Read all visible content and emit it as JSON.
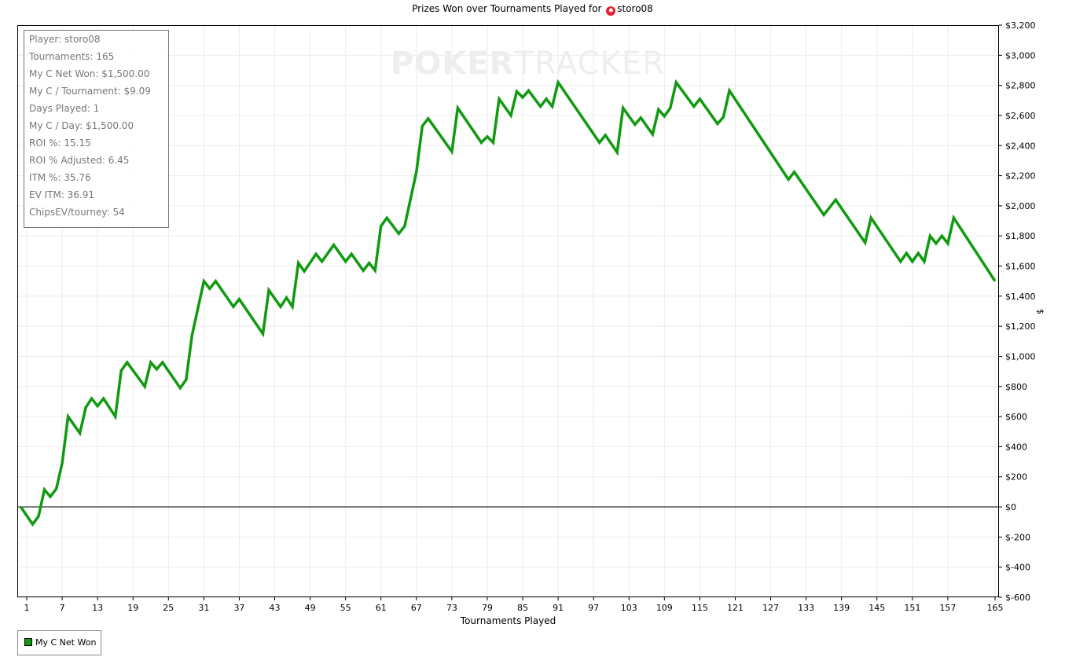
{
  "chart_data": {
    "type": "line",
    "title": "Prizes Won over Tournaments Played for",
    "title_player": "storo08",
    "title_icon": "red-spade-icon",
    "xlabel": "Tournaments Played",
    "ylabel": "$",
    "xlim": [
      0,
      165
    ],
    "ylim": [
      -600,
      3200
    ],
    "grid": true,
    "legend_position": "bottom-left",
    "x_ticks": [
      "1",
      "7",
      "13",
      "19",
      "25",
      "31",
      "37",
      "43",
      "49",
      "55",
      "61",
      "67",
      "73",
      "79",
      "85",
      "91",
      "97",
      "103",
      "109",
      "115",
      "121",
      "127",
      "133",
      "139",
      "145",
      "151",
      "157",
      "165"
    ],
    "y_ticks": [
      "$3,200",
      "$3,000",
      "$2,800",
      "$2,600",
      "$2,400",
      "$2,200",
      "$2,000",
      "$1,800",
      "$1,600",
      "$1,400",
      "$1,200",
      "$1,000",
      "$800",
      "$600",
      "$400",
      "$200",
      "$0",
      "$-200",
      "$-400",
      "$-600"
    ],
    "series": [
      {
        "name": "My C Net Won",
        "color": "#109a10",
        "points": [
          [
            0,
            0
          ],
          [
            2,
            -115
          ],
          [
            3,
            -63
          ],
          [
            4,
            115
          ],
          [
            5,
            68
          ],
          [
            6,
            120
          ],
          [
            7,
            290
          ],
          [
            8,
            600
          ],
          [
            10,
            490
          ],
          [
            11,
            660
          ],
          [
            12,
            720
          ],
          [
            13,
            670
          ],
          [
            14,
            720
          ],
          [
            16,
            600
          ],
          [
            17,
            905
          ],
          [
            18,
            960
          ],
          [
            21,
            800
          ],
          [
            22,
            960
          ],
          [
            23,
            915
          ],
          [
            24,
            960
          ],
          [
            27,
            790
          ],
          [
            28,
            845
          ],
          [
            29,
            1140
          ],
          [
            31,
            1500
          ],
          [
            32,
            1450
          ],
          [
            33,
            1500
          ],
          [
            36,
            1330
          ],
          [
            37,
            1380
          ],
          [
            41,
            1150
          ],
          [
            42,
            1440
          ],
          [
            44,
            1330
          ],
          [
            45,
            1390
          ],
          [
            46,
            1330
          ],
          [
            47,
            1620
          ],
          [
            48,
            1565
          ],
          [
            50,
            1680
          ],
          [
            51,
            1630
          ],
          [
            53,
            1740
          ],
          [
            55,
            1630
          ],
          [
            56,
            1680
          ],
          [
            58,
            1570
          ],
          [
            59,
            1620
          ],
          [
            60,
            1570
          ],
          [
            61,
            1865
          ],
          [
            62,
            1920
          ],
          [
            64,
            1815
          ],
          [
            65,
            1865
          ],
          [
            67,
            2225
          ],
          [
            68,
            2530
          ],
          [
            69,
            2580
          ],
          [
            73,
            2360
          ],
          [
            74,
            2650
          ],
          [
            78,
            2420
          ],
          [
            79,
            2460
          ],
          [
            80,
            2420
          ],
          [
            81,
            2710
          ],
          [
            83,
            2600
          ],
          [
            84,
            2760
          ],
          [
            85,
            2720
          ],
          [
            86,
            2765
          ],
          [
            88,
            2660
          ],
          [
            89,
            2710
          ],
          [
            90,
            2660
          ],
          [
            91,
            2820
          ],
          [
            98,
            2420
          ],
          [
            99,
            2470
          ],
          [
            101,
            2355
          ],
          [
            102,
            2650
          ],
          [
            104,
            2540
          ],
          [
            105,
            2585
          ],
          [
            107,
            2475
          ],
          [
            108,
            2640
          ],
          [
            109,
            2595
          ],
          [
            110,
            2650
          ],
          [
            111,
            2820
          ],
          [
            114,
            2660
          ],
          [
            115,
            2710
          ],
          [
            118,
            2545
          ],
          [
            119,
            2590
          ],
          [
            120,
            2765
          ],
          [
            130,
            2175
          ],
          [
            131,
            2225
          ],
          [
            136,
            1940
          ],
          [
            138,
            2040
          ],
          [
            143,
            1755
          ],
          [
            144,
            1920
          ],
          [
            149,
            1630
          ],
          [
            150,
            1685
          ],
          [
            151,
            1630
          ],
          [
            152,
            1685
          ],
          [
            153,
            1630
          ],
          [
            154,
            1800
          ],
          [
            155,
            1750
          ],
          [
            156,
            1800
          ],
          [
            157,
            1750
          ],
          [
            158,
            1920
          ],
          [
            165,
            1500
          ]
        ]
      }
    ]
  },
  "stats": [
    "Player: storo08",
    "Tournaments: 165",
    "My C Net Won: $1,500.00",
    "My C / Tournament: $9.09",
    "Days Played: 1",
    "My C / Day: $1,500.00",
    "ROI %: 15.15",
    "ROI % Adjusted: 6.45",
    "ITM %: 35.76",
    "EV ITM: 36.91",
    "ChipsEV/tourney: 54"
  ],
  "watermark": {
    "bold": "POKER",
    "light": "TRACKER"
  }
}
